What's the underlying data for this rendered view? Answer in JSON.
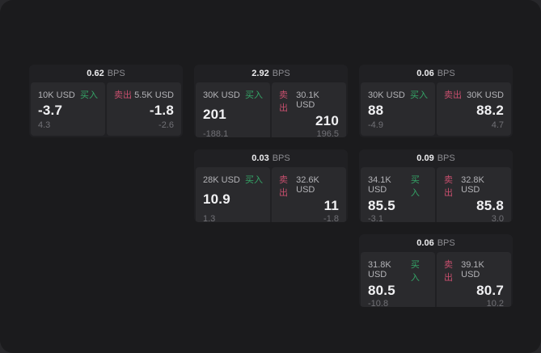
{
  "labels": {
    "buy": "买入",
    "sell": "卖出",
    "bps_suffix": "BPS"
  },
  "colors": {
    "backdrop": "#28282b",
    "surface": "#1b1b1d",
    "card": "#202023",
    "panel": "#2a2a2d",
    "buy_green": "#34a567",
    "sell_red": "#c84f6e",
    "price_text": "#f1f1f3",
    "muted_text": "#b3b3b7",
    "dim_text": "#717176"
  },
  "cards": [
    {
      "bps": "0.62",
      "col": 1,
      "row": 1,
      "buy": {
        "size": "10K USD",
        "price": "-3.7",
        "delta": "4.3"
      },
      "sell": {
        "size": "5.5K USD",
        "price": "-1.8",
        "delta": "-2.6"
      }
    },
    {
      "bps": "2.92",
      "col": 2,
      "row": 1,
      "buy": {
        "size": "30K USD",
        "price": "201",
        "delta": "-188.1"
      },
      "sell": {
        "size": "30.1K USD",
        "price": "210",
        "delta": "196.5"
      }
    },
    {
      "bps": "0.06",
      "col": 3,
      "row": 1,
      "buy": {
        "size": "30K USD",
        "price": "88",
        "delta": "-4.9"
      },
      "sell": {
        "size": "30K USD",
        "price": "88.2",
        "delta": "4.7"
      }
    },
    {
      "bps": "0.03",
      "col": 2,
      "row": 2,
      "buy": {
        "size": "28K USD",
        "price": "10.9",
        "delta": "1.3"
      },
      "sell": {
        "size": "32.6K USD",
        "price": "11",
        "delta": "-1.8"
      }
    },
    {
      "bps": "0.09",
      "col": 3,
      "row": 2,
      "buy": {
        "size": "34.1K USD",
        "price": "85.5",
        "delta": "-3.1"
      },
      "sell": {
        "size": "32.8K USD",
        "price": "85.8",
        "delta": "3.0"
      }
    },
    {
      "bps": "0.06",
      "col": 3,
      "row": 3,
      "buy": {
        "size": "31.8K USD",
        "price": "80.5",
        "delta": "-10.8"
      },
      "sell": {
        "size": "39.1K USD",
        "price": "80.7",
        "delta": "10.2"
      }
    }
  ]
}
